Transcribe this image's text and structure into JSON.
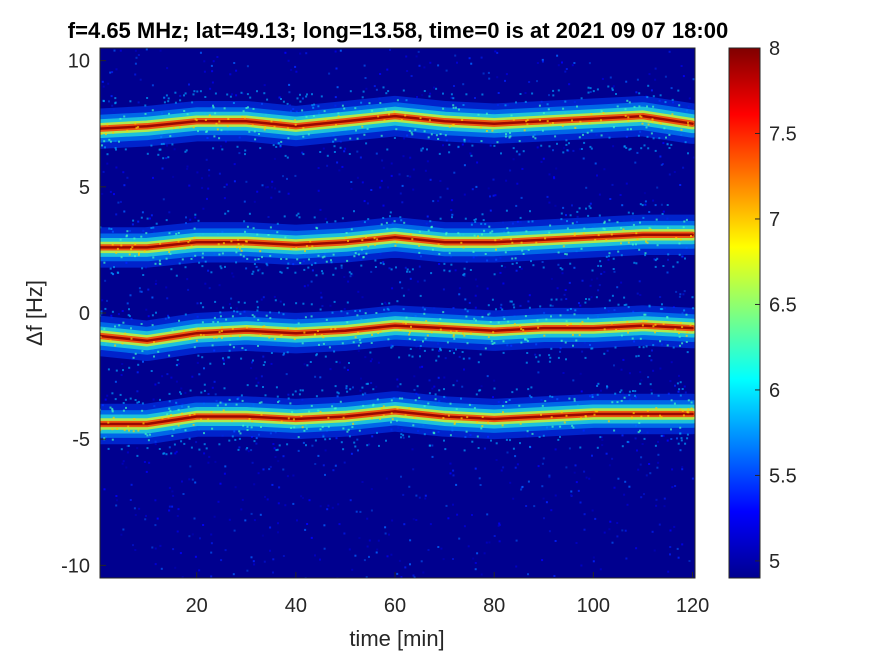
{
  "chart_data": {
    "type": "heatmap",
    "title": "f=4.65 MHz;  lat=49.13; long=13.58, time=0 is at 2021 09 07 18:00",
    "xlabel": "time [min]",
    "ylabel": "Δf [Hz]",
    "xlim": [
      0.5,
      120.5
    ],
    "ylim": [
      -10.5,
      10.5
    ],
    "x_ticks": [
      20,
      40,
      60,
      80,
      100,
      120
    ],
    "y_ticks": [
      -10,
      -5,
      0,
      5,
      10
    ],
    "colorbar": {
      "range": [
        4.9,
        8.0
      ],
      "ticks": [
        5,
        5.5,
        6,
        6.5,
        7,
        7.5,
        8
      ],
      "colormap": "jet"
    },
    "grid": false,
    "series": [
      {
        "x": [
          0,
          10,
          20,
          30,
          40,
          50,
          60,
          70,
          80,
          90,
          100,
          110,
          120
        ],
        "values": [
          7.3,
          7.4,
          7.6,
          7.6,
          7.4,
          7.6,
          7.8,
          7.6,
          7.5,
          7.6,
          7.7,
          7.8,
          7.5
        ]
      },
      {
        "x": [
          0,
          10,
          20,
          30,
          40,
          50,
          60,
          70,
          80,
          90,
          100,
          110,
          120
        ],
        "values": [
          2.6,
          2.6,
          2.8,
          2.8,
          2.7,
          2.8,
          3.0,
          2.8,
          2.8,
          2.9,
          3.0,
          3.1,
          3.1
        ]
      },
      {
        "x": [
          0,
          10,
          20,
          30,
          40,
          50,
          60,
          70,
          80,
          90,
          100,
          110,
          120
        ],
        "values": [
          -0.9,
          -1.1,
          -0.8,
          -0.7,
          -0.8,
          -0.7,
          -0.5,
          -0.6,
          -0.7,
          -0.6,
          -0.6,
          -0.5,
          -0.6
        ]
      },
      {
        "x": [
          0,
          10,
          20,
          30,
          40,
          50,
          60,
          70,
          80,
          90,
          100,
          110,
          120
        ],
        "values": [
          -4.4,
          -4.4,
          -4.1,
          -4.1,
          -4.2,
          -4.1,
          -3.9,
          -4.1,
          -4.2,
          -4.1,
          -4.0,
          -4.0,
          -4.0
        ]
      }
    ]
  }
}
